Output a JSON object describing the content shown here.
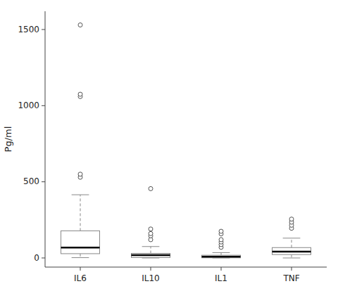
{
  "chart_data": {
    "type": "box",
    "categories": [
      "IL6",
      "IL10",
      "IL1",
      "TNF"
    ],
    "ylabel": "Pg/ml",
    "ylim": [
      -60,
      1620
    ],
    "yticks": [
      0,
      500,
      1000,
      1500
    ],
    "grid": false,
    "color": "#888888",
    "boxes": [
      {
        "q1": 28,
        "median": 68,
        "q3": 178,
        "whisker_low": 2,
        "whisker_high": 415,
        "outliers": [
          530,
          550,
          1060,
          1075,
          1530
        ]
      },
      {
        "q1": 3,
        "median": 18,
        "q3": 30,
        "whisker_low": 0,
        "whisker_high": 75,
        "outliers": [
          120,
          145,
          160,
          190,
          455
        ]
      },
      {
        "q1": 1,
        "median": 8,
        "q3": 18,
        "whisker_low": 0,
        "whisker_high": 35,
        "outliers": [
          70,
          88,
          105,
          120,
          158,
          175
        ]
      },
      {
        "q1": 22,
        "median": 42,
        "q3": 68,
        "whisker_low": 0,
        "whisker_high": 130,
        "outliers": [
          195,
          215,
          235,
          255
        ]
      }
    ]
  }
}
